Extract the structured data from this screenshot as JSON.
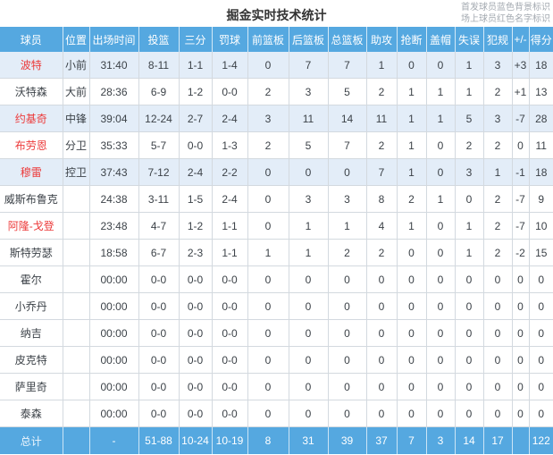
{
  "page": {
    "title": "掘金实时技术统计",
    "legend_line1": "首发球员蓝色背景标识",
    "legend_line2": "场上球员红色名字标识"
  },
  "colors": {
    "header_bg": "#55a8e0",
    "starter_row_bg": "#e3edf8",
    "red_name": "#ec3a3a",
    "border": "#d3d9df"
  },
  "table": {
    "columns": [
      "球员",
      "位置",
      "出场时间",
      "投篮",
      "三分",
      "罚球",
      "前篮板",
      "后篮板",
      "总篮板",
      "助攻",
      "抢断",
      "盖帽",
      "失误",
      "犯规",
      "+/-",
      "得分"
    ],
    "rows": [
      {
        "name": "波特",
        "on_court": true,
        "starter": true,
        "cells": [
          "小前",
          "31:40",
          "8-11",
          "1-1",
          "1-4",
          "0",
          "7",
          "7",
          "1",
          "0",
          "0",
          "1",
          "3",
          "+3",
          "18"
        ]
      },
      {
        "name": "沃特森",
        "on_court": false,
        "starter": false,
        "cells": [
          "大前",
          "28:36",
          "6-9",
          "1-2",
          "0-0",
          "2",
          "3",
          "5",
          "2",
          "1",
          "1",
          "1",
          "2",
          "+1",
          "13"
        ]
      },
      {
        "name": "约基奇",
        "on_court": true,
        "starter": true,
        "cells": [
          "中锋",
          "39:04",
          "12-24",
          "2-7",
          "2-4",
          "3",
          "11",
          "14",
          "11",
          "1",
          "1",
          "5",
          "3",
          "-7",
          "28"
        ]
      },
      {
        "name": "布劳恩",
        "on_court": true,
        "starter": false,
        "cells": [
          "分卫",
          "35:33",
          "5-7",
          "0-0",
          "1-3",
          "2",
          "5",
          "7",
          "2",
          "1",
          "0",
          "2",
          "2",
          "0",
          "11"
        ]
      },
      {
        "name": "穆雷",
        "on_court": true,
        "starter": true,
        "cells": [
          "控卫",
          "37:43",
          "7-12",
          "2-4",
          "2-2",
          "0",
          "0",
          "0",
          "7",
          "1",
          "0",
          "3",
          "1",
          "-1",
          "18"
        ]
      },
      {
        "name": "威斯布鲁克",
        "on_court": false,
        "starter": false,
        "cells": [
          "",
          "24:38",
          "3-11",
          "1-5",
          "2-4",
          "0",
          "3",
          "3",
          "8",
          "2",
          "1",
          "0",
          "2",
          "-7",
          "9"
        ]
      },
      {
        "name": "阿隆-戈登",
        "on_court": true,
        "starter": false,
        "cells": [
          "",
          "23:48",
          "4-7",
          "1-2",
          "1-1",
          "0",
          "1",
          "1",
          "4",
          "1",
          "0",
          "1",
          "2",
          "-7",
          "10"
        ]
      },
      {
        "name": "斯特劳瑟",
        "on_court": false,
        "starter": false,
        "cells": [
          "",
          "18:58",
          "6-7",
          "2-3",
          "1-1",
          "1",
          "1",
          "2",
          "2",
          "0",
          "0",
          "1",
          "2",
          "-2",
          "15"
        ]
      },
      {
        "name": "霍尔",
        "on_court": false,
        "starter": false,
        "cells": [
          "",
          "00:00",
          "0-0",
          "0-0",
          "0-0",
          "0",
          "0",
          "0",
          "0",
          "0",
          "0",
          "0",
          "0",
          "0",
          "0"
        ]
      },
      {
        "name": "小乔丹",
        "on_court": false,
        "starter": false,
        "cells": [
          "",
          "00:00",
          "0-0",
          "0-0",
          "0-0",
          "0",
          "0",
          "0",
          "0",
          "0",
          "0",
          "0",
          "0",
          "0",
          "0"
        ]
      },
      {
        "name": "纳吉",
        "on_court": false,
        "starter": false,
        "cells": [
          "",
          "00:00",
          "0-0",
          "0-0",
          "0-0",
          "0",
          "0",
          "0",
          "0",
          "0",
          "0",
          "0",
          "0",
          "0",
          "0"
        ]
      },
      {
        "name": "皮克特",
        "on_court": false,
        "starter": false,
        "cells": [
          "",
          "00:00",
          "0-0",
          "0-0",
          "0-0",
          "0",
          "0",
          "0",
          "0",
          "0",
          "0",
          "0",
          "0",
          "0",
          "0"
        ]
      },
      {
        "name": "萨里奇",
        "on_court": false,
        "starter": false,
        "cells": [
          "",
          "00:00",
          "0-0",
          "0-0",
          "0-0",
          "0",
          "0",
          "0",
          "0",
          "0",
          "0",
          "0",
          "0",
          "0",
          "0"
        ]
      },
      {
        "name": "泰森",
        "on_court": false,
        "starter": false,
        "cells": [
          "",
          "00:00",
          "0-0",
          "0-0",
          "0-0",
          "0",
          "0",
          "0",
          "0",
          "0",
          "0",
          "0",
          "0",
          "0",
          "0"
        ]
      }
    ],
    "total": {
      "label": "总计",
      "cells": [
        "",
        "-",
        "51-88",
        "10-24",
        "10-19",
        "8",
        "31",
        "39",
        "37",
        "7",
        "3",
        "14",
        "17",
        "",
        "122"
      ]
    }
  }
}
